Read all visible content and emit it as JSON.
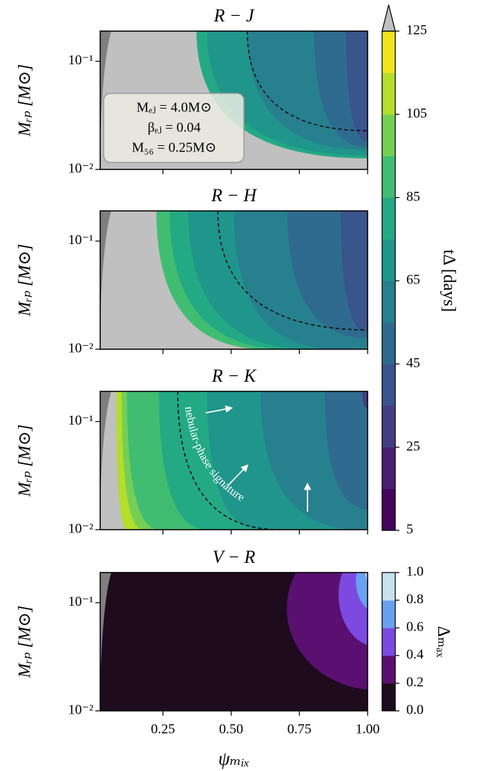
{
  "chart_data": [
    {
      "type": "contour",
      "title": "R − J",
      "ylabel": "Mᵣₚ [M⊙]",
      "xlim": [
        0.02,
        1.0
      ],
      "ylim": [
        0.01,
        0.19
      ],
      "yscale": "log",
      "xticks": [
        0.25,
        0.5,
        0.75,
        1.0
      ],
      "yticks": [
        {
          "value": 0.01,
          "label": "10⁻²"
        },
        {
          "value": 0.1,
          "label": "10⁻¹"
        }
      ],
      "annotation": [
        "Mₑⱼ = 4.0M⊙",
        "βₑⱼ = 0.04",
        "M₅₆ = 0.25M⊙"
      ]
    },
    {
      "type": "contour",
      "title": "R − H",
      "ylabel": "Mᵣₚ [M⊙]",
      "xlim": [
        0.02,
        1.0
      ],
      "ylim": [
        0.01,
        0.19
      ],
      "yscale": "log",
      "xticks": [
        0.25,
        0.5,
        0.75,
        1.0
      ],
      "yticks": [
        {
          "value": 0.01,
          "label": "10⁻²"
        },
        {
          "value": 0.1,
          "label": "10⁻¹"
        }
      ]
    },
    {
      "type": "contour",
      "title": "R − K",
      "ylabel": "Mᵣₚ [M⊙]",
      "xlim": [
        0.02,
        1.0
      ],
      "ylim": [
        0.01,
        0.19
      ],
      "yscale": "log",
      "xticks": [
        0.25,
        0.5,
        0.75,
        1.0
      ],
      "yticks": [
        {
          "value": 0.01,
          "label": "10⁻²"
        },
        {
          "value": 0.1,
          "label": "10⁻¹"
        }
      ],
      "annotation": "nebular-phase signature"
    },
    {
      "type": "contour",
      "title": "V − R",
      "ylabel": "Mᵣₚ [M⊙]",
      "xlabel": "ψₘᵢₓ",
      "xlim": [
        0.02,
        1.0
      ],
      "ylim": [
        0.01,
        0.19
      ],
      "yscale": "log",
      "xticks": [
        0.25,
        {
          "value": 0.5,
          "label": "0.50"
        },
        0.75,
        {
          "value": 1.0,
          "label": "1.00"
        }
      ],
      "yticks": [
        {
          "value": 0.01,
          "label": "10⁻²"
        },
        {
          "value": 0.1,
          "label": "10⁻¹"
        }
      ]
    },
    {
      "type": "colorbar",
      "label": "tΔ [days]",
      "levels": [
        5,
        15,
        25,
        35,
        45,
        55,
        65,
        75,
        85,
        95,
        105,
        115,
        125
      ],
      "colors": [
        "#450559",
        "#482172",
        "#433d84",
        "#3a548c",
        "#2f6b8e",
        "#27808e",
        "#1f958b",
        "#23a983",
        "#41bd72",
        "#75cf55",
        "#b4dd2c",
        "#f0e51c"
      ],
      "ticks": [
        5,
        25,
        45,
        65,
        85,
        105,
        125
      ],
      "extend": "max",
      "extend_color": "#c0c0c0"
    },
    {
      "type": "colorbar",
      "label": "Δₘₐₓ",
      "levels": [
        0.0,
        0.2,
        0.4,
        0.6,
        0.8,
        1.0
      ],
      "colors": [
        "#1e0b1e",
        "#5a1070",
        "#7c4ae0",
        "#6aa0f0",
        "#c7e1ef"
      ],
      "ticks": [
        {
          "value": 0.0,
          "label": "0.0"
        },
        {
          "value": 0.2,
          "label": "0.2"
        },
        {
          "value": 0.4,
          "label": "0.4"
        },
        {
          "value": 0.6,
          "label": "0.6"
        },
        {
          "value": 0.8,
          "label": "0.8"
        },
        {
          "value": 1.0,
          "label": "1.0"
        }
      ]
    }
  ]
}
